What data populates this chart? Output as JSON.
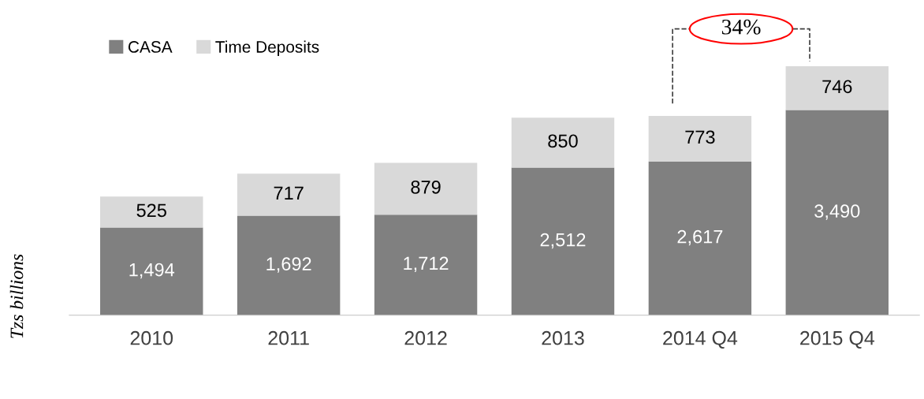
{
  "chart_data": {
    "type": "bar",
    "stacked": true,
    "legend": "top left",
    "grid": false,
    "ylabel": "Tzs billions",
    "categories": [
      "2010",
      "2011",
      "2012",
      "2013",
      "2014 Q4",
      "2015 Q4"
    ],
    "series": [
      {
        "name": "CASA",
        "color": "#808080",
        "values": [
          1494,
          1692,
          1712,
          2512,
          2617,
          3490
        ],
        "value_labels": [
          "1,494",
          "1,692",
          "1,712",
          "2,512",
          "2,617",
          "3,490"
        ]
      },
      {
        "name": "Time Deposits",
        "color": "#d9d9d9",
        "values": [
          525,
          717,
          879,
          850,
          773,
          746
        ],
        "value_labels": [
          "525",
          "717",
          "879",
          "850",
          "773",
          "746"
        ]
      }
    ],
    "annotations": [
      "34%"
    ]
  }
}
